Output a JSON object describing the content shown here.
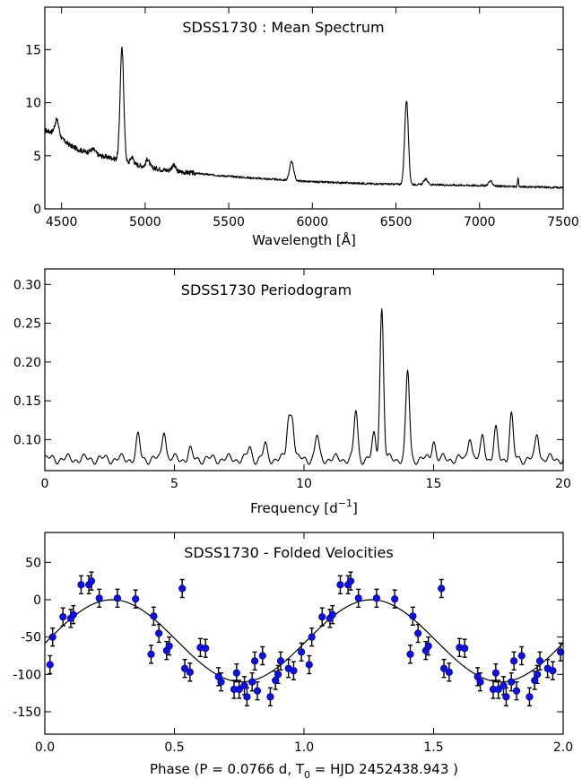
{
  "chart_data": [
    {
      "type": "line",
      "title": "SDSS1730 : Mean Spectrum",
      "xlabel": "Wavelength [Å]",
      "ylabel": "",
      "xlim": [
        4400,
        7500
      ],
      "ylim": [
        0,
        19
      ],
      "xticks": [
        4500,
        5000,
        5500,
        6000,
        6500,
        7000,
        7500
      ],
      "yticks": [
        0,
        5,
        10,
        15
      ],
      "continuum_knots": [
        [
          4400,
          7.4
        ],
        [
          4450,
          7.2
        ],
        [
          4500,
          6.6
        ],
        [
          4550,
          6.0
        ],
        [
          4600,
          5.6
        ],
        [
          4700,
          5.1
        ],
        [
          4800,
          4.8
        ],
        [
          4900,
          4.3
        ],
        [
          5000,
          4.0
        ],
        [
          5100,
          3.7
        ],
        [
          5200,
          3.5
        ],
        [
          5400,
          3.2
        ],
        [
          5600,
          2.95
        ],
        [
          5800,
          2.75
        ],
        [
          6000,
          2.55
        ],
        [
          6200,
          2.45
        ],
        [
          6400,
          2.35
        ],
        [
          6600,
          2.3
        ],
        [
          6800,
          2.25
        ],
        [
          7000,
          2.2
        ],
        [
          7200,
          2.1
        ],
        [
          7500,
          2.0
        ]
      ],
      "emission_lines": [
        {
          "center": 4861,
          "peak": 15.1,
          "width": 11
        },
        {
          "center": 6563,
          "peak": 10.2,
          "width": 11
        },
        {
          "center": 5876,
          "peak": 4.5,
          "width": 12
        },
        {
          "center": 4471,
          "peak": 8.4,
          "width": 12
        },
        {
          "center": 4686,
          "peak": 5.6,
          "width": 16
        },
        {
          "center": 4921,
          "peak": 4.9,
          "width": 10
        },
        {
          "center": 5015,
          "peak": 4.7,
          "width": 10
        },
        {
          "center": 5169,
          "peak": 4.1,
          "width": 12
        },
        {
          "center": 6678,
          "peak": 2.8,
          "width": 12
        },
        {
          "center": 7065,
          "peak": 2.6,
          "width": 12
        },
        {
          "center": 7230,
          "peak": 2.9,
          "width": 3
        }
      ]
    },
    {
      "type": "line",
      "title": "SDSS1730 Periodogram",
      "xlabel": "Frequency [d",
      "xlabel_sup": "−1",
      "xlabel_end": "]",
      "ylabel": "",
      "xlim": [
        0,
        20
      ],
      "ylim": [
        0.06,
        0.32
      ],
      "xticks": [
        0,
        5,
        10,
        15,
        20
      ],
      "yticks": [
        0.1,
        0.15,
        0.2,
        0.25,
        0.3
      ],
      "ytick_labels": [
        "0.10",
        "0.15",
        "0.20",
        "0.25",
        "0.30"
      ],
      "baseline": 0.075,
      "peaks": [
        {
          "f": 3.6,
          "p": 0.104
        },
        {
          "f": 4.6,
          "p": 0.115
        },
        {
          "f": 5.6,
          "p": 0.086
        },
        {
          "f": 7.9,
          "p": 0.09
        },
        {
          "f": 8.5,
          "p": 0.093
        },
        {
          "f": 9.4,
          "p": 0.125
        },
        {
          "f": 9.55,
          "p": 0.127
        },
        {
          "f": 10.5,
          "p": 0.105
        },
        {
          "f": 12.0,
          "p": 0.137
        },
        {
          "f": 12.7,
          "p": 0.105
        },
        {
          "f": 13.0,
          "p": 0.269
        },
        {
          "f": 14.0,
          "p": 0.188
        },
        {
          "f": 15.0,
          "p": 0.1
        },
        {
          "f": 16.4,
          "p": 0.107
        },
        {
          "f": 16.9,
          "p": 0.105
        },
        {
          "f": 17.4,
          "p": 0.112
        },
        {
          "f": 18.0,
          "p": 0.131
        },
        {
          "f": 19.0,
          "p": 0.108
        }
      ]
    },
    {
      "type": "scatter",
      "title": "SDSS1730 - Folded Velocities",
      "xlabel": "Phase (P =  0.0766 d,  T",
      "xlabel_sub": "0",
      "xlabel_end": " = HJD 2452438.943 )",
      "ylabel": "",
      "xlim": [
        0.0,
        2.0
      ],
      "ylim": [
        -180,
        90
      ],
      "xticks": [
        0.0,
        0.5,
        1.0,
        1.5,
        2.0
      ],
      "xtick_labels": [
        "0.0",
        "0.5",
        "1.0",
        "1.5",
        "2.0"
      ],
      "yticks": [
        -150,
        -100,
        -50,
        0,
        50
      ],
      "fit": {
        "gamma": -55,
        "amplitude": 55,
        "phase_of_max": 0.26
      },
      "error": 12,
      "points": [
        [
          0.02,
          -87
        ],
        [
          0.03,
          -50
        ],
        [
          0.07,
          -23
        ],
        [
          0.1,
          -25
        ],
        [
          0.11,
          -20
        ],
        [
          0.14,
          20
        ],
        [
          0.17,
          20
        ],
        [
          0.18,
          25
        ],
        [
          0.21,
          2
        ],
        [
          0.28,
          2
        ],
        [
          0.35,
          1
        ],
        [
          0.42,
          -22
        ],
        [
          0.44,
          -45
        ],
        [
          0.47,
          -68
        ],
        [
          0.48,
          -62
        ],
        [
          0.41,
          -73
        ],
        [
          0.53,
          15
        ],
        [
          0.54,
          -92
        ],
        [
          0.56,
          -97
        ],
        [
          0.6,
          -64
        ],
        [
          0.62,
          -65
        ],
        [
          0.67,
          -103
        ],
        [
          0.68,
          -110
        ],
        [
          0.73,
          -120
        ],
        [
          0.74,
          -98
        ],
        [
          0.75,
          -120
        ],
        [
          0.77,
          -115
        ],
        [
          0.78,
          -130
        ],
        [
          0.8,
          -110
        ],
        [
          0.81,
          -82
        ],
        [
          0.82,
          -122
        ],
        [
          0.84,
          -75
        ],
        [
          0.87,
          -130
        ],
        [
          0.89,
          -108
        ],
        [
          0.9,
          -100
        ],
        [
          0.91,
          -82
        ],
        [
          0.94,
          -92
        ],
        [
          0.96,
          -95
        ],
        [
          0.99,
          -70
        ],
        [
          1.02,
          -87
        ],
        [
          1.03,
          -50
        ],
        [
          1.07,
          -23
        ],
        [
          1.1,
          -25
        ],
        [
          1.11,
          -20
        ],
        [
          1.14,
          20
        ],
        [
          1.17,
          20
        ],
        [
          1.18,
          25
        ],
        [
          1.21,
          2
        ],
        [
          1.28,
          2
        ],
        [
          1.35,
          1
        ],
        [
          1.41,
          -73
        ],
        [
          1.42,
          -22
        ],
        [
          1.44,
          -45
        ],
        [
          1.47,
          -68
        ],
        [
          1.48,
          -62
        ],
        [
          1.53,
          15
        ],
        [
          1.54,
          -92
        ],
        [
          1.56,
          -97
        ],
        [
          1.6,
          -64
        ],
        [
          1.62,
          -65
        ],
        [
          1.67,
          -103
        ],
        [
          1.68,
          -110
        ],
        [
          1.73,
          -120
        ],
        [
          1.74,
          -98
        ],
        [
          1.75,
          -120
        ],
        [
          1.77,
          -115
        ],
        [
          1.78,
          -130
        ],
        [
          1.8,
          -110
        ],
        [
          1.81,
          -82
        ],
        [
          1.82,
          -122
        ],
        [
          1.84,
          -75
        ],
        [
          1.87,
          -130
        ],
        [
          1.89,
          -108
        ],
        [
          1.9,
          -100
        ],
        [
          1.91,
          -82
        ],
        [
          1.94,
          -92
        ],
        [
          1.96,
          -95
        ],
        [
          1.99,
          -70
        ]
      ]
    }
  ]
}
